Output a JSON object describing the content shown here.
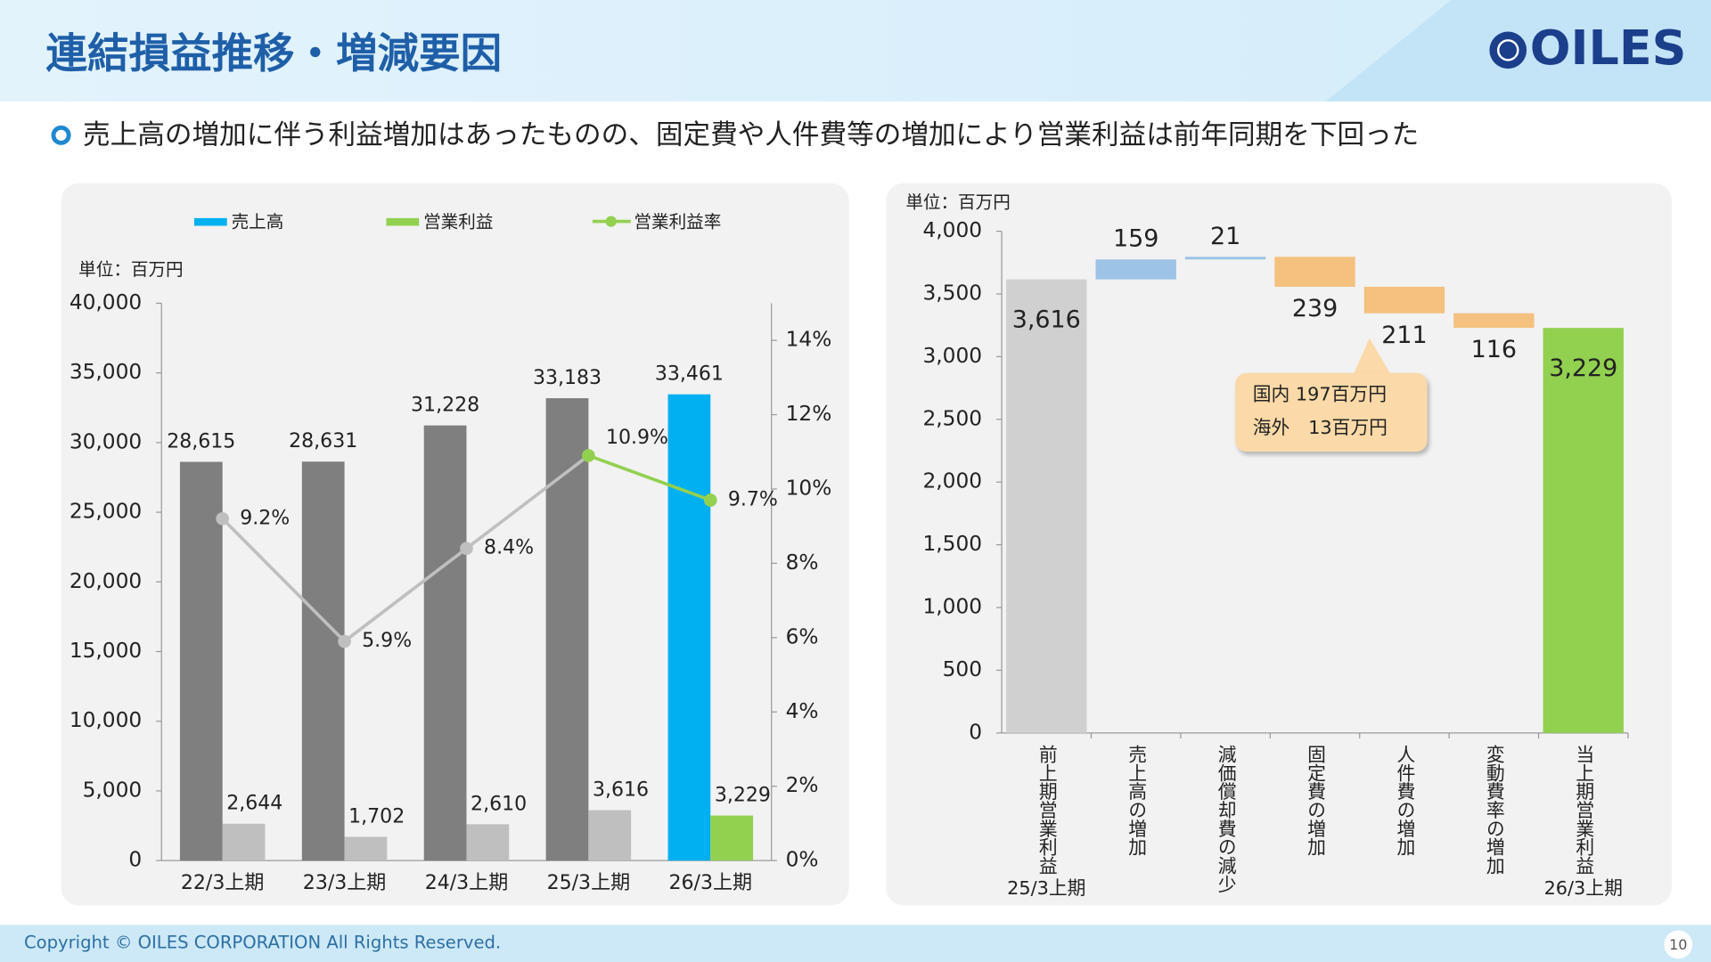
{
  "header": {
    "title": "連結損益推移・増減要因",
    "logo": "OILES"
  },
  "bullet": "売上高の増加に伴う利益増加はあったものの、固定費や人件費等の増加により営業利益は前年同期を下回った",
  "footer": {
    "copyright": "Copyright © OILES CORPORATION All Rights Reserved.",
    "page": "10"
  },
  "chart_data": [
    {
      "type": "bar-line",
      "y_label": "単位：百万円",
      "legend": "top",
      "categories": [
        "22/3上期",
        "23/3上期",
        "24/3上期",
        "25/3上期",
        "26/3上期"
      ],
      "series": [
        {
          "name": "売上高",
          "color": "#00b0f0",
          "point_colors": [
            "#7f7f7f",
            "#7f7f7f",
            "#7f7f7f",
            "#7f7f7f",
            "#00b0f0"
          ],
          "values": [
            28615,
            28631,
            31228,
            33183,
            33461
          ],
          "value_labels": [
            "28,615",
            "28,631",
            "31,228",
            "33,183",
            "33,461"
          ]
        },
        {
          "name": "営業利益",
          "color": "#92d050",
          "point_colors": [
            "#bfbfbf",
            "#bfbfbf",
            "#bfbfbf",
            "#bfbfbf",
            "#92d050"
          ],
          "values": [
            2644,
            1702,
            2610,
            3616,
            3229
          ],
          "value_labels": [
            "2,644",
            "1,702",
            "2,610",
            "3,616",
            "3,229"
          ]
        },
        {
          "name": "営業利益率",
          "type": "line",
          "axis": "y2",
          "color": "#92d050",
          "point_colors": [
            "#bfbfbf",
            "#bfbfbf",
            "#bfbfbf",
            "#92d050",
            "#92d050"
          ],
          "values": [
            9.2,
            5.9,
            8.4,
            10.9,
            9.7
          ],
          "value_labels": [
            "9.2%",
            "5.9%",
            "8.4%",
            "10.9%",
            "9.7%"
          ]
        }
      ],
      "ylim": [
        0,
        40000
      ],
      "yticks": [
        0,
        {
          "value": 5000,
          "label": "5,000"
        },
        {
          "value": 10000,
          "label": "10,000"
        },
        {
          "value": 15000,
          "label": "15,000"
        },
        {
          "value": 20000,
          "label": "20,000"
        },
        {
          "value": 25000,
          "label": "25,000"
        },
        {
          "value": 30000,
          "label": "30,000"
        },
        {
          "value": 35000,
          "label": "35,000"
        },
        {
          "value": 40000,
          "label": "40,000"
        }
      ],
      "y2lim": [
        0,
        15
      ],
      "y2ticks": [
        {
          "value": 0,
          "label": "0%"
        },
        {
          "value": 2,
          "label": "2%"
        },
        {
          "value": 4,
          "label": "4%"
        },
        {
          "value": 6,
          "label": "6%"
        },
        {
          "value": 8,
          "label": "8%"
        },
        {
          "value": 10,
          "label": "10%"
        },
        {
          "value": 12,
          "label": "12%"
        },
        {
          "value": 14,
          "label": "14%"
        }
      ]
    },
    {
      "type": "waterfall",
      "y_label": "単位：百万円",
      "categories": [
        "前上期営業利益",
        "売上高の増加",
        "減価償却費の減少",
        "固定費の増加",
        "人件費の増加",
        "変動費率の増加",
        "当上期営業利益"
      ],
      "measures": [
        "total",
        "increase",
        "increase",
        "decrease",
        "decrease",
        "decrease",
        "total"
      ],
      "values": [
        3616,
        159,
        21,
        239,
        211,
        116,
        3229
      ],
      "value_labels": [
        "3,616",
        "159",
        "21",
        "239",
        "211",
        "116",
        "3,229"
      ],
      "colors": [
        "#d0d0d0",
        "#9dc3e6",
        "#9dc3e6",
        "#f4c17f",
        "#f4c17f",
        "#f4c17f",
        "#92d050"
      ],
      "start_period": "25/3上期",
      "end_period": "26/3上期",
      "annotation": [
        "国内 197百万円",
        "海外　13百万円"
      ],
      "ylim": [
        0,
        4000
      ],
      "yticks": [
        0,
        500,
        {
          "value": 1000,
          "label": "1,000"
        },
        {
          "value": 1500,
          "label": "1,500"
        },
        {
          "value": 2000,
          "label": "2,000"
        },
        {
          "value": 2500,
          "label": "2,500"
        },
        {
          "value": 3000,
          "label": "3,000"
        },
        {
          "value": 3500,
          "label": "3,500"
        },
        {
          "value": 4000,
          "label": "4,000"
        }
      ]
    }
  ]
}
